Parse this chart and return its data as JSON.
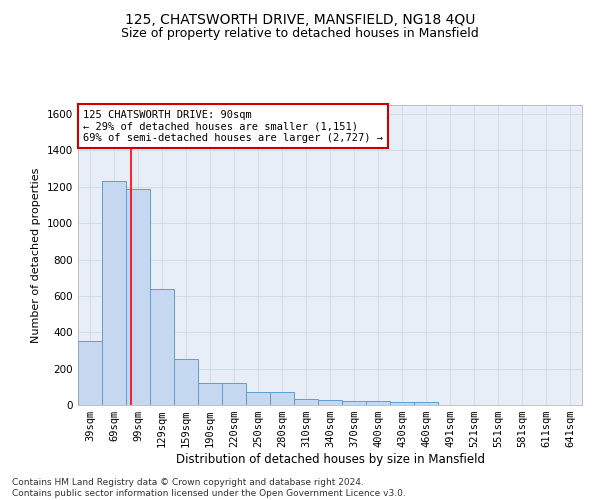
{
  "title": "125, CHATSWORTH DRIVE, MANSFIELD, NG18 4QU",
  "subtitle": "Size of property relative to detached houses in Mansfield",
  "xlabel": "Distribution of detached houses by size in Mansfield",
  "ylabel": "Number of detached properties",
  "categories": [
    "39sqm",
    "69sqm",
    "99sqm",
    "129sqm",
    "159sqm",
    "190sqm",
    "220sqm",
    "250sqm",
    "280sqm",
    "310sqm",
    "340sqm",
    "370sqm",
    "400sqm",
    "430sqm",
    "460sqm",
    "491sqm",
    "521sqm",
    "551sqm",
    "581sqm",
    "611sqm",
    "641sqm"
  ],
  "values": [
    350,
    1230,
    1190,
    640,
    255,
    120,
    120,
    70,
    70,
    35,
    30,
    20,
    20,
    14,
    14,
    0,
    0,
    0,
    0,
    0,
    0
  ],
  "bar_color": "#c5d8f0",
  "bar_edge_color": "#5a9fd4",
  "red_line_x": 1.72,
  "annotation_text": "125 CHATSWORTH DRIVE: 90sqm\n← 29% of detached houses are smaller (1,151)\n69% of semi-detached houses are larger (2,727) →",
  "annotation_box_color": "#ffffff",
  "annotation_box_edge_color": "#cc0000",
  "ylim": [
    0,
    1650
  ],
  "yticks": [
    0,
    200,
    400,
    600,
    800,
    1000,
    1200,
    1400,
    1600
  ],
  "grid_color": "#d0d8e4",
  "ax_bg_color": "#e8eef7",
  "footnote": "Contains HM Land Registry data © Crown copyright and database right 2024.\nContains public sector information licensed under the Open Government Licence v3.0.",
  "title_fontsize": 10,
  "subtitle_fontsize": 9,
  "xlabel_fontsize": 8.5,
  "ylabel_fontsize": 8,
  "tick_fontsize": 7.5,
  "annotation_fontsize": 7.5,
  "footnote_fontsize": 6.5
}
